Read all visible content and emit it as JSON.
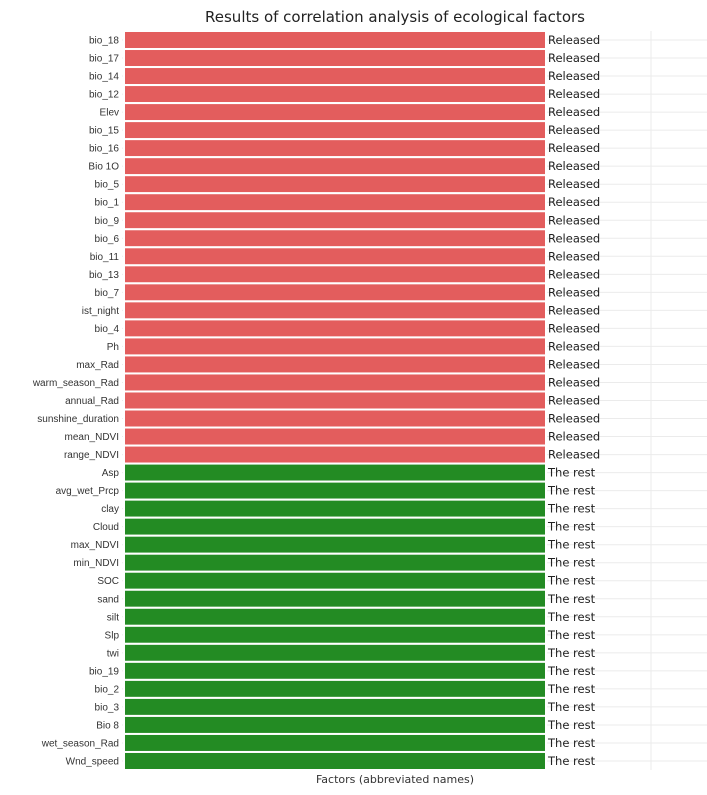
{
  "chart_data": {
    "type": "bar",
    "orientation": "horizontal",
    "title": "Results of correlation analysis of ecological factors",
    "xlabel": "Factors (abbreviated names)",
    "ylabel": "",
    "grid": true,
    "colors": {
      "Released": "#e35d5d",
      "The rest": "#238b23"
    },
    "categories": [
      "bio_18",
      "bio_17",
      "bio_14",
      "bio_12",
      "Elev",
      "bio_15",
      "bio_16",
      "Bio 1O",
      "bio_5",
      "bio_1",
      "bio_9",
      "bio_6",
      "bio_11",
      "bio_13",
      "bio_7",
      "ist_night",
      "bio_4",
      "Ph",
      "max_Rad",
      "warm_season_Rad",
      "annual_Rad",
      "sunshine_duration",
      "mean_NDVI",
      "range_NDVI",
      "Asp",
      "avg_wet_Prcp",
      "clay",
      "Cloud",
      "max_NDVI",
      "min_NDVI",
      "SOC",
      "sand",
      "silt",
      "Slp",
      "twi",
      "bio_19",
      "bio_2",
      "bio_3",
      "Bio 8",
      "wet_season_Rad",
      "Wnd_speed"
    ],
    "groups": [
      "Released",
      "Released",
      "Released",
      "Released",
      "Released",
      "Released",
      "Released",
      "Released",
      "Released",
      "Released",
      "Released",
      "Released",
      "Released",
      "Released",
      "Released",
      "Released",
      "Released",
      "Released",
      "Released",
      "Released",
      "Released",
      "Released",
      "Released",
      "Released",
      "The rest",
      "The rest",
      "The rest",
      "The rest",
      "The rest",
      "The rest",
      "The rest",
      "The rest",
      "The rest",
      "The rest",
      "The rest",
      "The rest",
      "The rest",
      "The rest",
      "The rest",
      "The rest",
      "The rest"
    ],
    "values": [
      1,
      1,
      1,
      1,
      1,
      1,
      1,
      1,
      1,
      1,
      1,
      1,
      1,
      1,
      1,
      1,
      1,
      1,
      1,
      1,
      1,
      1,
      1,
      1,
      1,
      1,
      1,
      1,
      1,
      1,
      1,
      1,
      1,
      1,
      1,
      1,
      1,
      1,
      1,
      1,
      1
    ],
    "data_labels": [
      "Released",
      "Released",
      "Released",
      "Released",
      "Released",
      "Released",
      "Released",
      "Released",
      "Released",
      "Released",
      "Released",
      "Released",
      "Released",
      "Released",
      "Released",
      "Released",
      "Released",
      "Released",
      "Released",
      "Released",
      "Released",
      "Released",
      "Released",
      "Released",
      "The rest",
      "The rest",
      "The rest",
      "The rest",
      "The rest",
      "The rest",
      "The rest",
      "The rest",
      "The rest",
      "The rest",
      "The rest",
      "The rest",
      "The rest",
      "The rest",
      "The rest",
      "The rest",
      "The rest"
    ]
  }
}
